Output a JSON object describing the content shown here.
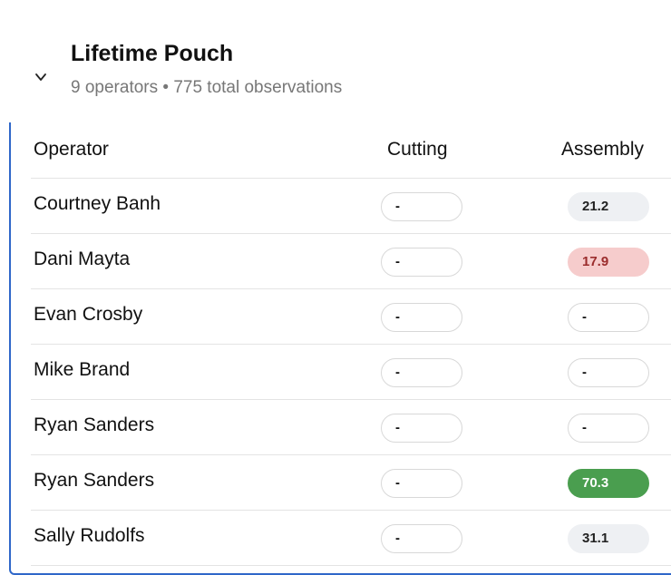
{
  "card": {
    "title": "Lifetime Pouch",
    "subtitle": "9 operators • 775 total observations",
    "expand_icon": "chevron-down-icon"
  },
  "table": {
    "columns": [
      "Operator",
      "Cutting",
      "Assembly"
    ],
    "rows": [
      {
        "operator": "Courtney Banh",
        "cutting": "-",
        "assembly": "21.2",
        "assembly_status": "neutral"
      },
      {
        "operator": "Dani Mayta",
        "cutting": "-",
        "assembly": "17.9",
        "assembly_status": "bad"
      },
      {
        "operator": "Evan Crosby",
        "cutting": "-",
        "assembly": "-",
        "assembly_status": "empty"
      },
      {
        "operator": "Mike Brand",
        "cutting": "-",
        "assembly": "-",
        "assembly_status": "empty"
      },
      {
        "operator": "Ryan Sanders",
        "cutting": "-",
        "assembly": "-",
        "assembly_status": "empty"
      },
      {
        "operator": "Ryan Sanders",
        "cutting": "-",
        "assembly": "70.3",
        "assembly_status": "good"
      },
      {
        "operator": "Sally Rudolfs",
        "cutting": "-",
        "assembly": "31.1",
        "assembly_status": "neutral"
      }
    ]
  },
  "colors": {
    "accent_border": "#2f67c9",
    "good": "#4a9e4f",
    "bad_bg": "#f6cccc",
    "bad_text": "#9b2c2c",
    "neutral_bg": "#eef0f3"
  }
}
